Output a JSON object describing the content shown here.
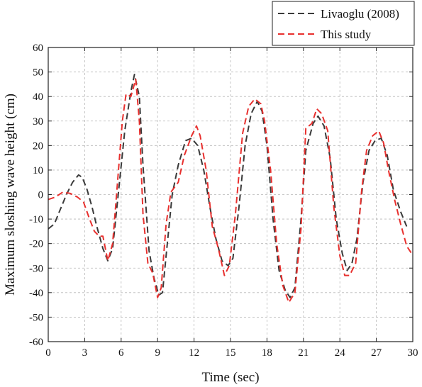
{
  "chart_data": {
    "type": "line",
    "xlabel": "Time (sec)",
    "ylabel": "Maximum sloshing wave height (cm)",
    "xlim": [
      0,
      30
    ],
    "ylim": [
      -60,
      60
    ],
    "xticks": [
      0,
      3,
      6,
      9,
      12,
      15,
      18,
      21,
      24,
      27,
      30
    ],
    "yticks": [
      -60,
      -50,
      -40,
      -30,
      -20,
      -10,
      0,
      10,
      20,
      30,
      40,
      50,
      60
    ],
    "grid": true,
    "legend_position": "top-right, outside plot",
    "series": [
      {
        "name": "Livaoglu (2008)",
        "color": "#3a3a3a",
        "dash": "dashed",
        "points": [
          [
            0,
            -14
          ],
          [
            0.5,
            -12
          ],
          [
            1.0,
            -6
          ],
          [
            1.5,
            0
          ],
          [
            2.0,
            5
          ],
          [
            2.5,
            8
          ],
          [
            2.8,
            7
          ],
          [
            3.2,
            2
          ],
          [
            3.6,
            -5
          ],
          [
            4.0,
            -13
          ],
          [
            4.5,
            -22
          ],
          [
            4.9,
            -27
          ],
          [
            5.3,
            -22
          ],
          [
            5.8,
            2
          ],
          [
            6.3,
            26
          ],
          [
            6.8,
            42
          ],
          [
            7.1,
            49
          ],
          [
            7.5,
            40
          ],
          [
            7.8,
            12
          ],
          [
            8.3,
            -23
          ],
          [
            8.7,
            -34
          ],
          [
            9.1,
            -41
          ],
          [
            9.4,
            -40
          ],
          [
            9.8,
            -20
          ],
          [
            10.2,
            0
          ],
          [
            10.7,
            12
          ],
          [
            11.3,
            22
          ],
          [
            11.8,
            23
          ],
          [
            12.3,
            20
          ],
          [
            12.8,
            10
          ],
          [
            13.3,
            -5
          ],
          [
            13.8,
            -18
          ],
          [
            14.3,
            -27
          ],
          [
            14.8,
            -29
          ],
          [
            15.2,
            -26
          ],
          [
            15.7,
            -5
          ],
          [
            16.2,
            20
          ],
          [
            16.7,
            33
          ],
          [
            17.2,
            38
          ],
          [
            17.6,
            34
          ],
          [
            18.0,
            20
          ],
          [
            18.5,
            -10
          ],
          [
            19.0,
            -31
          ],
          [
            19.5,
            -39
          ],
          [
            19.9,
            -42
          ],
          [
            20.3,
            -38
          ],
          [
            20.8,
            -10
          ],
          [
            21.2,
            18
          ],
          [
            21.8,
            29
          ],
          [
            22.2,
            32
          ],
          [
            22.7,
            28
          ],
          [
            23.2,
            15
          ],
          [
            23.7,
            -10
          ],
          [
            24.2,
            -24
          ],
          [
            24.6,
            -31
          ],
          [
            25.0,
            -28
          ],
          [
            25.4,
            -18
          ],
          [
            25.9,
            5
          ],
          [
            26.4,
            18
          ],
          [
            26.9,
            22
          ],
          [
            27.4,
            23
          ],
          [
            27.9,
            16
          ],
          [
            28.4,
            2
          ],
          [
            29.0,
            -7
          ],
          [
            29.5,
            -13
          ]
        ]
      },
      {
        "name": "This study",
        "color": "#e8302e",
        "dash": "dashed",
        "points": [
          [
            0,
            -2
          ],
          [
            0.6,
            -1
          ],
          [
            1.2,
            1
          ],
          [
            1.8,
            0.5
          ],
          [
            2.4,
            -1
          ],
          [
            2.9,
            -3
          ],
          [
            3.4,
            -10
          ],
          [
            3.8,
            -15
          ],
          [
            4.2,
            -17
          ],
          [
            4.5,
            -17
          ],
          [
            4.9,
            -27
          ],
          [
            5.3,
            -20
          ],
          [
            5.7,
            5
          ],
          [
            6.1,
            30
          ],
          [
            6.4,
            41
          ],
          [
            6.8,
            40
          ],
          [
            7.2,
            47
          ],
          [
            7.5,
            30
          ],
          [
            7.8,
            -8
          ],
          [
            8.2,
            -28
          ],
          [
            8.6,
            -32
          ],
          [
            9.0,
            -42
          ],
          [
            9.3,
            -38
          ],
          [
            9.7,
            -12
          ],
          [
            10.1,
            1
          ],
          [
            10.7,
            5
          ],
          [
            11.2,
            16
          ],
          [
            11.8,
            24
          ],
          [
            12.2,
            28
          ],
          [
            12.5,
            24
          ],
          [
            13.0,
            10
          ],
          [
            13.5,
            -13
          ],
          [
            14.0,
            -22
          ],
          [
            14.5,
            -33
          ],
          [
            14.9,
            -29
          ],
          [
            15.4,
            -8
          ],
          [
            16.0,
            25
          ],
          [
            16.5,
            36
          ],
          [
            17.0,
            39
          ],
          [
            17.5,
            37
          ],
          [
            17.8,
            30
          ],
          [
            18.3,
            10
          ],
          [
            18.8,
            -20
          ],
          [
            19.3,
            -37
          ],
          [
            19.8,
            -44
          ],
          [
            20.3,
            -40
          ],
          [
            20.8,
            -14
          ],
          [
            21.2,
            27
          ],
          [
            21.7,
            29
          ],
          [
            22.1,
            35
          ],
          [
            22.5,
            33
          ],
          [
            23.0,
            26
          ],
          [
            23.5,
            -5
          ],
          [
            24.0,
            -25
          ],
          [
            24.4,
            -33
          ],
          [
            24.8,
            -33
          ],
          [
            25.3,
            -28
          ],
          [
            25.8,
            2
          ],
          [
            26.2,
            18
          ],
          [
            26.7,
            24
          ],
          [
            27.2,
            26
          ],
          [
            27.6,
            21
          ],
          [
            28.0,
            10
          ],
          [
            28.5,
            -2
          ],
          [
            29.0,
            -12
          ],
          [
            29.5,
            -21
          ],
          [
            29.9,
            -24
          ]
        ]
      }
    ]
  }
}
